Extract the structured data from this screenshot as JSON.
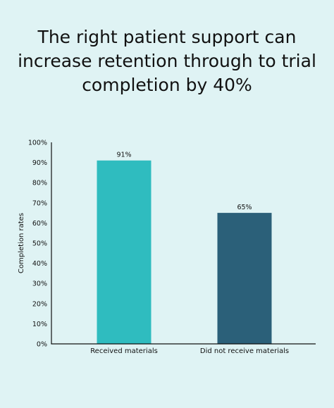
{
  "chart_data": {
    "type": "bar",
    "title": "The right patient support can increase retention through to trial completion by 40%",
    "xlabel": "",
    "ylabel": "Completion rates",
    "categories": [
      "Received materials",
      "Did not receive materials"
    ],
    "values": [
      91,
      65
    ],
    "data_labels": [
      "91%",
      "65%"
    ],
    "ylim": [
      0,
      100
    ],
    "yticks": [
      0,
      10,
      20,
      30,
      40,
      50,
      60,
      70,
      80,
      90,
      100
    ],
    "ytick_labels": [
      "0%",
      "10%",
      "20%",
      "30%",
      "40%",
      "50%",
      "60%",
      "70%",
      "80%",
      "90%",
      "100%"
    ],
    "grid": false,
    "legend": "none",
    "bar_colors": [
      "#2fbcbf",
      "#2b6079"
    ],
    "background_color": "#dff3f4"
  }
}
